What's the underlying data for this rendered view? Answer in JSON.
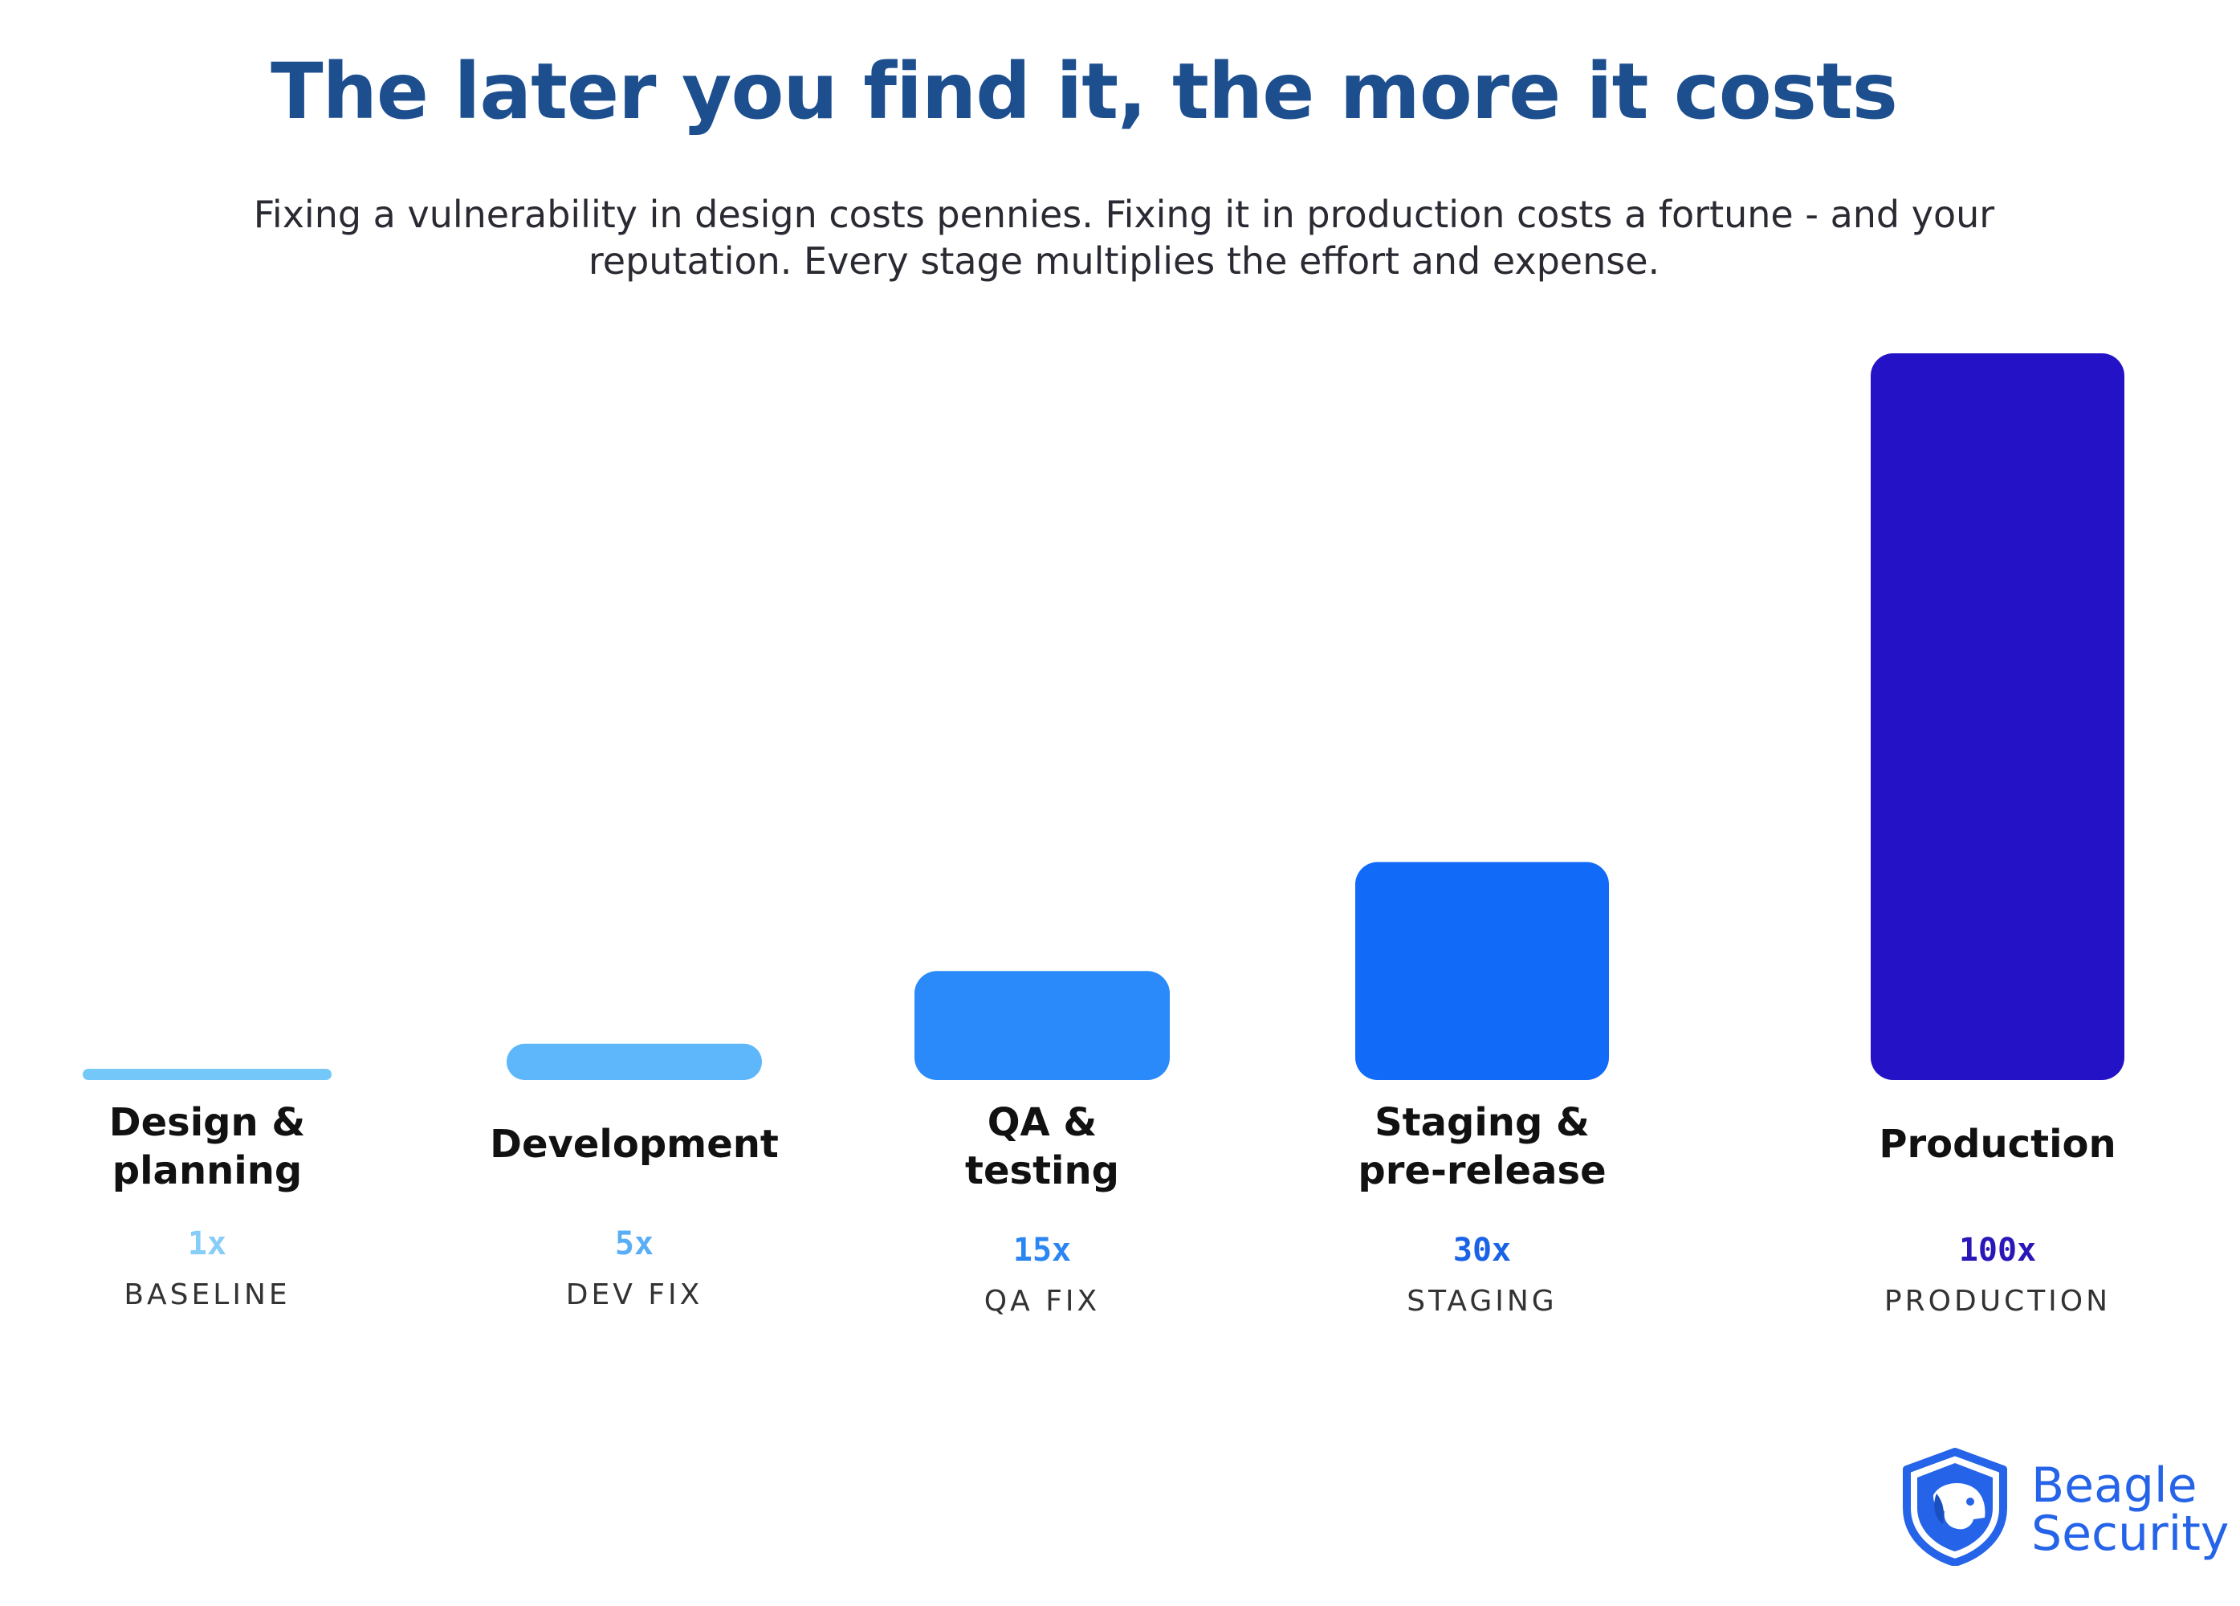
{
  "header": {
    "title": "The later you find it, the more it costs",
    "subtitle": "Fixing a vulnerability in design costs pennies. Fixing it in production costs a fortune - and your reputation. Every stage multiplies the effort and expense."
  },
  "chart_data": {
    "type": "bar",
    "categories": [
      "Design &\nplanning",
      "Development",
      "QA &\ntesting",
      "Staging &\npre-release",
      "Production"
    ],
    "values": [
      1,
      5,
      15,
      30,
      100
    ],
    "value_labels": [
      "1x",
      "5x",
      "15x",
      "30x",
      "100x"
    ],
    "captions": [
      "BASELINE",
      "DEV FIX",
      "QA FIX",
      "STAGING",
      "PRODUCTION"
    ],
    "colors": [
      "#74c8f9",
      "#5eb7fb",
      "#2a8af9",
      "#116af8",
      "#2412c6"
    ],
    "label_colors": [
      "#86cdf8",
      "#5aaef6",
      "#2b86f3",
      "#1b63e6",
      "#2a17b8"
    ],
    "ylim": [
      0,
      100
    ],
    "grid": false,
    "legend": "none"
  },
  "logo": {
    "line1": "Beagle",
    "line2": "Security",
    "icon": "beagle-shield-icon",
    "color": "#2564e8"
  }
}
